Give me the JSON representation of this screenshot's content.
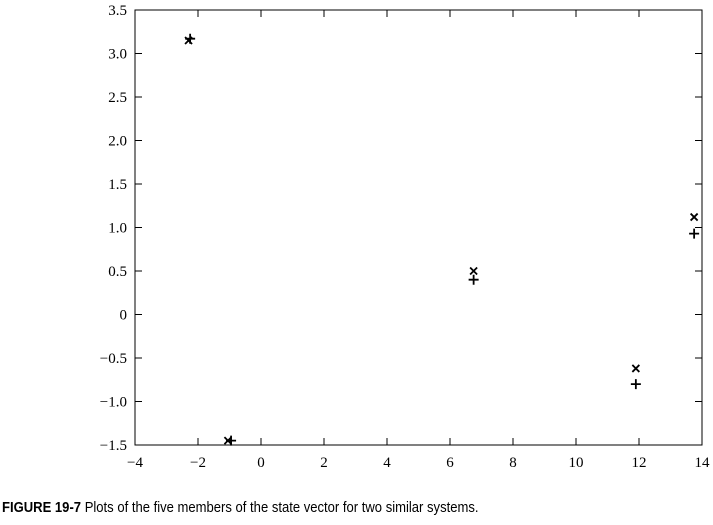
{
  "chart_data": {
    "type": "scatter",
    "title": "",
    "xlabel": "",
    "ylabel": "",
    "xlim": [
      -4,
      14
    ],
    "ylim": [
      -1.5,
      3.5
    ],
    "x_ticks": [
      -4,
      -2,
      0,
      2,
      4,
      6,
      8,
      10,
      12,
      14
    ],
    "x_tick_labels": [
      "−4",
      "−2",
      "0",
      "2",
      "4",
      "6",
      "8",
      "10",
      "12",
      "14"
    ],
    "y_ticks": [
      -1.5,
      -1.0,
      -0.5,
      0,
      0.5,
      1.0,
      1.5,
      2.0,
      2.5,
      3.0,
      3.5
    ],
    "y_tick_labels": [
      "−1.5",
      "−1.0",
      "−0.5",
      "0",
      "0.5",
      "1.0",
      "1.5",
      "2.0",
      "2.5",
      "3.0",
      "3.5"
    ],
    "grid": false,
    "series": [
      {
        "marker": "x",
        "color": "#000000",
        "points": [
          {
            "x": -2.3,
            "y": 3.15
          },
          {
            "x": -1.05,
            "y": -1.45
          },
          {
            "x": 6.75,
            "y": 0.5
          },
          {
            "x": 11.9,
            "y": -0.62
          },
          {
            "x": 13.75,
            "y": 1.12
          }
        ]
      },
      {
        "marker": "plus",
        "color": "#000000",
        "points": [
          {
            "x": -2.25,
            "y": 3.17
          },
          {
            "x": -0.95,
            "y": -1.45
          },
          {
            "x": 6.75,
            "y": 0.4
          },
          {
            "x": 11.9,
            "y": -0.8
          },
          {
            "x": 13.75,
            "y": 0.93
          }
        ]
      }
    ]
  },
  "caption": {
    "label": "FIGURE 19-7",
    "text": "Plots of the five members of the state vector for two similar systems."
  }
}
